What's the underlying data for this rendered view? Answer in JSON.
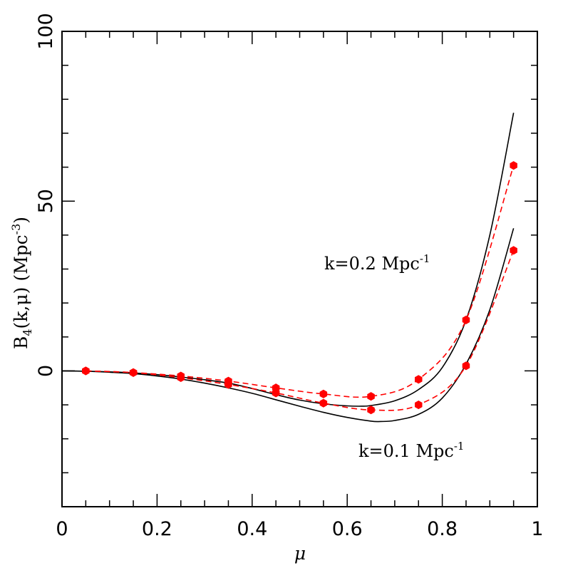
{
  "chart_data": {
    "type": "line",
    "xlabel": "μ",
    "ylabel": {
      "main": "B",
      "sub": "4",
      "rest": "(k,μ)  (Mpc",
      "sup": "-3",
      "end": ")"
    },
    "xlim": [
      0,
      1
    ],
    "ylim": [
      -40,
      100
    ],
    "x_ticks": [
      0,
      0.2,
      0.4,
      0.6,
      0.8,
      1
    ],
    "x_tick_labels": [
      "0",
      "0.2",
      "0.4",
      "0.6",
      "0.8",
      "1"
    ],
    "y_ticks": [
      0,
      50,
      100
    ],
    "y_tick_labels": [
      "0",
      "50",
      "100"
    ],
    "grid": false,
    "annotations": [
      {
        "id": "k02",
        "text": "k=0.2 Mpc",
        "sup": "-1"
      },
      {
        "id": "k01",
        "text": "k=0.1 Mpc",
        "sup": "-1"
      }
    ],
    "series": [
      {
        "id": "theory-k02",
        "style": "solid",
        "color": "#000000",
        "x": [
          0.0,
          0.05,
          0.1,
          0.15,
          0.2,
          0.25,
          0.3,
          0.35,
          0.4,
          0.45,
          0.5,
          0.55,
          0.6,
          0.63,
          0.65,
          0.7,
          0.75,
          0.8,
          0.85,
          0.9,
          0.95
        ],
        "y": [
          0,
          -0.1,
          -0.3,
          -0.6,
          -1.1,
          -1.8,
          -2.6,
          -3.6,
          -5.2,
          -7.0,
          -8.6,
          -9.7,
          -10.3,
          -10.4,
          -10.2,
          -8.8,
          -5.5,
          1.0,
          15.0,
          40.0,
          76.0
        ]
      },
      {
        "id": "theory-k01",
        "style": "solid",
        "color": "#000000",
        "x": [
          0.0,
          0.05,
          0.1,
          0.15,
          0.2,
          0.25,
          0.3,
          0.35,
          0.4,
          0.45,
          0.5,
          0.55,
          0.6,
          0.65,
          0.67,
          0.7,
          0.75,
          0.8,
          0.85,
          0.9,
          0.95
        ],
        "y": [
          0,
          -0.1,
          -0.4,
          -0.8,
          -1.5,
          -2.4,
          -3.6,
          -5.0,
          -6.6,
          -8.5,
          -10.4,
          -12.2,
          -13.7,
          -14.8,
          -14.9,
          -14.6,
          -12.8,
          -8.0,
          2.0,
          18.0,
          42.0
        ]
      },
      {
        "id": "model-k02",
        "style": "dashed",
        "color": "#ff0000",
        "x": [
          0.05,
          0.15,
          0.25,
          0.35,
          0.45,
          0.55,
          0.65,
          0.75,
          0.85,
          0.95
        ],
        "y": [
          0,
          -0.5,
          -1.5,
          -3.0,
          -5.0,
          -6.8,
          -7.5,
          -2.5,
          15.0,
          60.5
        ]
      },
      {
        "id": "model-k01",
        "style": "dashed",
        "color": "#ff0000",
        "x": [
          0.05,
          0.15,
          0.25,
          0.35,
          0.45,
          0.55,
          0.65,
          0.75,
          0.85,
          0.95
        ],
        "y": [
          0,
          -0.5,
          -2.0,
          -4.0,
          -6.5,
          -9.5,
          -11.5,
          -10.0,
          1.5,
          35.5
        ]
      }
    ]
  }
}
